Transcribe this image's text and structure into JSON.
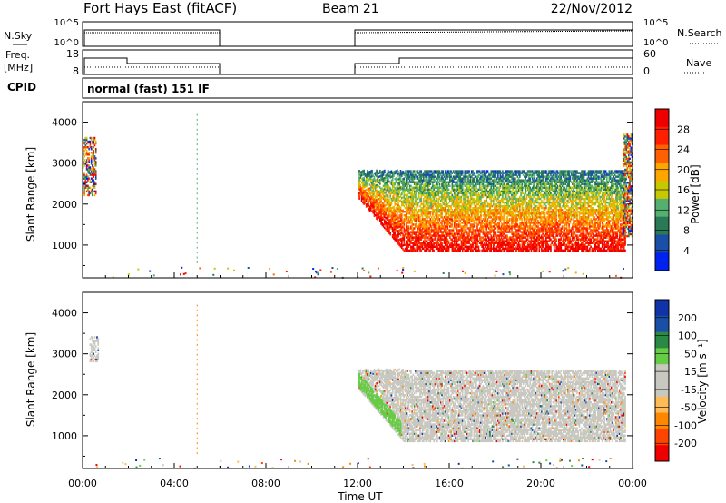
{
  "header": {
    "title": "Fort Hays East (fitACF)",
    "beam": "Beam 21",
    "date": "22/Nov/2012"
  },
  "strip_labels": {
    "nsky": "N.Sky",
    "nsearch": "N.Search",
    "freq": "Freq.",
    "freq_unit": "[MHz]",
    "nave": "Nave",
    "cpid": "CPID",
    "cpid_value": "normal (fast) 151 IF"
  },
  "strip_ticks": {
    "noise_left": [
      "10^5",
      "10^0"
    ],
    "noise_right": [
      "10^5",
      "10^0"
    ],
    "freq_left": [
      "18",
      "8"
    ],
    "nave_right": [
      "60",
      "0"
    ]
  },
  "colors": {
    "power_scale": [
      "#0022ee",
      "#1a4fa8",
      "#2a7a55",
      "#55b070",
      "#c8c800",
      "#ffa500",
      "#ff6000",
      "#ff2000",
      "#ee0000"
    ],
    "velocity_scale": [
      "#ee0000",
      "#ff4400",
      "#ff8800",
      "#ffbb55",
      "#c8c8c0",
      "#c8c8c0",
      "#66cc44",
      "#2a8a44",
      "#1a4fa8",
      "#1133aa"
    ],
    "ground_scatter": "#c8c8c0"
  },
  "chart_data": [
    {
      "type": "heatmap",
      "panel": "power",
      "ylabel": "Slant Range [km]",
      "yticks": [
        "1000",
        "2000",
        "3000",
        "4000"
      ],
      "ylim": [
        200,
        4500
      ],
      "xlim": [
        0,
        24
      ],
      "colorbar_label": "Power [dB]",
      "colorbar_ticks": [
        "4",
        "8",
        "12",
        "16",
        "20",
        "24",
        "28"
      ],
      "regions": [
        {
          "t0": 0.0,
          "t1": 0.6,
          "r0": 2200,
          "r1": 3600,
          "level": "mixed"
        },
        {
          "t0": 12.0,
          "t1": 23.7,
          "r0": 850,
          "r1": 2800,
          "level": "high"
        },
        {
          "t0": 23.6,
          "t1": 24.0,
          "r0": 1200,
          "r1": 3700,
          "level": "mixed"
        }
      ]
    },
    {
      "type": "heatmap",
      "panel": "velocity",
      "ylabel": "Slant Range [km]",
      "yticks": [
        "1000",
        "2000",
        "3000",
        "4000"
      ],
      "ylim": [
        200,
        4500
      ],
      "xlim": [
        0,
        24
      ],
      "colorbar_label": "Velocity [m s⁻¹]",
      "colorbar_ticks": [
        "200",
        "100",
        "50",
        "15",
        "-15",
        "-50",
        "-100",
        "-200"
      ],
      "xlabel": "Time UT",
      "xticks": [
        "00:00",
        "04:00",
        "08:00",
        "12:00",
        "16:00",
        "20:00",
        "00:00"
      ],
      "regions": [
        {
          "t0": 0.3,
          "t1": 0.7,
          "r0": 2800,
          "r1": 3400,
          "level": "ground"
        },
        {
          "t0": 12.0,
          "t1": 23.7,
          "r0": 850,
          "r1": 2600,
          "level": "ground"
        },
        {
          "t0": 12.0,
          "t1": 13.9,
          "r0": 900,
          "r1": 2500,
          "level": "positive"
        }
      ]
    }
  ]
}
